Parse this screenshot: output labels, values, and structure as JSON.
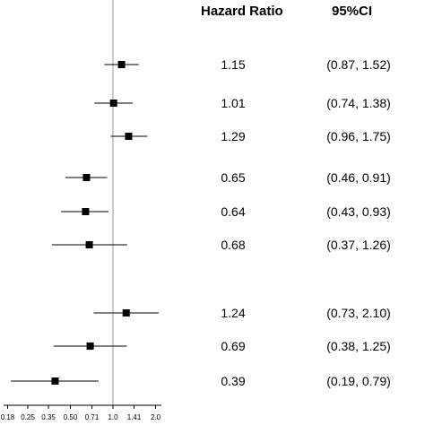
{
  "headers": {
    "hr": "Hazard Ratio",
    "ci": "95%CI"
  },
  "chart_data": {
    "type": "forest",
    "xscale": "log",
    "reference_line": 1.0,
    "xlim": [
      0.18,
      2.0
    ],
    "x_ticks": [
      "0.18",
      "0.25",
      "0.35",
      "0.50",
      "0.71",
      "1.0",
      "1.41",
      "2.0"
    ],
    "rows": [
      {
        "hr": 1.15,
        "lower": 0.87,
        "upper": 1.52,
        "hr_text": "1.15",
        "ci_text": "(0.87, 1.52)"
      },
      {
        "hr": 1.01,
        "lower": 0.74,
        "upper": 1.38,
        "hr_text": "1.01",
        "ci_text": "(0.74, 1.38)"
      },
      {
        "hr": 1.29,
        "lower": 0.96,
        "upper": 1.75,
        "hr_text": "1.29",
        "ci_text": "(0.96, 1.75)"
      },
      {
        "hr": 0.65,
        "lower": 0.46,
        "upper": 0.91,
        "hr_text": "0.65",
        "ci_text": "(0.46, 0.91)"
      },
      {
        "hr": 0.64,
        "lower": 0.43,
        "upper": 0.93,
        "hr_text": "0.64",
        "ci_text": "(0.43, 0.93)"
      },
      {
        "hr": 0.68,
        "lower": 0.37,
        "upper": 1.26,
        "hr_text": "0.68",
        "ci_text": "(0.37, 1.26)"
      },
      {
        "hr": 1.24,
        "lower": 0.73,
        "upper": 2.1,
        "hr_text": "1.24",
        "ci_text": "(0.73, 2.10)"
      },
      {
        "hr": 0.69,
        "lower": 0.38,
        "upper": 1.25,
        "hr_text": "0.69",
        "ci_text": "(0.38, 1.25)"
      },
      {
        "hr": 0.39,
        "lower": 0.19,
        "upper": 0.79,
        "hr_text": "0.39",
        "ci_text": "(0.19, 0.79)"
      }
    ]
  }
}
